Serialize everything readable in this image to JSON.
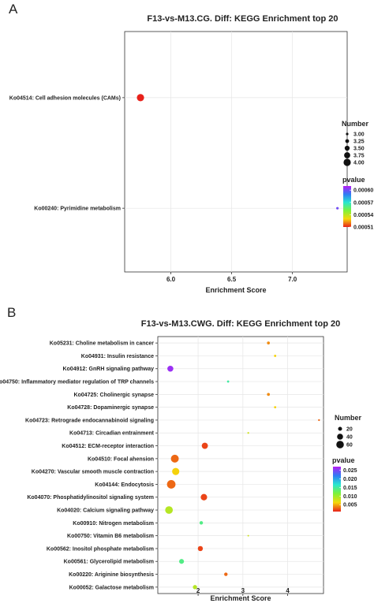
{
  "chart_data": [
    {
      "panel": "A",
      "type": "scatter",
      "title": "F13-vs-M13.CG. Diff: KEGG Enrichment top 20",
      "xlabel": "Enrichment Score",
      "ylabel": "",
      "xlim": [
        5.62,
        7.45
      ],
      "xticks": [
        6.0,
        6.5,
        7.0
      ],
      "xtick_labels": [
        "6.0",
        "6.5",
        "7.0"
      ],
      "grid": true,
      "categories": [
        "Ko04514: Cell adhesion molecules (CAMs)",
        "Ko00240: Pyrimidine metabolism"
      ],
      "points": [
        {
          "term": "Ko04514: Cell adhesion molecules (CAMs)",
          "x": 5.75,
          "number": 4,
          "pvalue": 0.00051
        },
        {
          "term": "Ko00240: Pyrimidine metabolism",
          "x": 7.37,
          "number": 3,
          "pvalue": 0.0006
        }
      ],
      "size_legend": {
        "title": "Number",
        "labels": [
          "3.00",
          "3.25",
          "3.50",
          "3.75",
          "4.00"
        ],
        "values": [
          3.0,
          3.25,
          3.5,
          3.75,
          4.0
        ],
        "range": [
          3,
          4
        ]
      },
      "color_legend": {
        "title": "pvalue",
        "labels": [
          "0.00060",
          "0.00057",
          "0.00054",
          "0.00051"
        ],
        "values": [
          0.0006,
          0.00057,
          0.00054,
          0.00051
        ],
        "range": [
          0.00051,
          0.00061
        ]
      },
      "legend_position": "right"
    },
    {
      "panel": "B",
      "type": "scatter",
      "title": "F13-vs-M13.CWG. Diff: KEGG Enrichment top 20",
      "xlabel": "Enrichment Score",
      "ylabel": "",
      "xlim": [
        1.1,
        4.8
      ],
      "xticks": [
        2,
        3,
        4
      ],
      "xtick_labels": [
        "2",
        "3",
        "4"
      ],
      "grid": true,
      "categories": [
        "Ko05231: Choline metabolism in cancer",
        "Ko04931: Insulin resistance",
        "Ko04912: GnRH signaling pathway",
        "Ko04750: Inflammatory mediator regulation of TRP channels",
        "Ko04725: Cholinergic synapse",
        "Ko04728: Dopaminergic synapse",
        "Ko04723: Retrograde endocannabinoid signaling",
        "Ko04713: Circadian entrainment",
        "Ko04512: ECM-receptor interaction",
        "Ko04510: Focal ahension",
        "Ko04270: Vascular smooth muscle contraction",
        "Ko04144: Endocytosis",
        "Ko04070: Phosphatidylinositol signaling system",
        "Ko04020: Calcium signaling pathway",
        "Ko00910: Nitrogen metabolism",
        "Ko00750: Vitamin B6 metabolism",
        "Ko00562: Inositol phosphate metabolism",
        "Ko00561: Glycerolipid metabolism",
        "Ko00220: Ariginine biosynthesis",
        "Ko00052: Galactose metabolism"
      ],
      "points": [
        {
          "term": "Ko05231: Choline metabolism in cancer",
          "x": 3.57,
          "number": 12,
          "pvalue": 0.004
        },
        {
          "term": "Ko04931: Insulin resistance",
          "x": 3.72,
          "number": 8,
          "pvalue": 0.006
        },
        {
          "term": "Ko04912: GnRH signaling pathway",
          "x": 1.38,
          "number": 40,
          "pvalue": 0.026
        },
        {
          "term": "Ko04750: Inflammatory mediator regulation of TRP channels",
          "x": 2.67,
          "number": 8,
          "pvalue": 0.015
        },
        {
          "term": "Ko04725: Cholinergic synapse",
          "x": 3.57,
          "number": 12,
          "pvalue": 0.004
        },
        {
          "term": "Ko04728: Dopaminergic synapse",
          "x": 3.72,
          "number": 8,
          "pvalue": 0.006
        },
        {
          "term": "Ko04723: Retrograde endocannabinoid signaling",
          "x": 4.7,
          "number": 6,
          "pvalue": 0.003
        },
        {
          "term": "Ko04713: Circadian entrainment",
          "x": 3.12,
          "number": 6,
          "pvalue": 0.008
        },
        {
          "term": "Ko04512: ECM-receptor interaction",
          "x": 2.15,
          "number": 42,
          "pvalue": 0.002
        },
        {
          "term": "Ko04510: Focal ahension",
          "x": 1.48,
          "number": 65,
          "pvalue": 0.003
        },
        {
          "term": "Ko04270: Vascular smooth muscle contraction",
          "x": 1.5,
          "number": 55,
          "pvalue": 0.006
        },
        {
          "term": "Ko04144: Endocytosis",
          "x": 1.4,
          "number": 75,
          "pvalue": 0.003
        },
        {
          "term": "Ko04070: Phosphatidylinositol signaling system",
          "x": 2.13,
          "number": 45,
          "pvalue": 0.002
        },
        {
          "term": "Ko04020: Calcium signaling pathway",
          "x": 1.35,
          "number": 62,
          "pvalue": 0.009
        },
        {
          "term": "Ko00910: Nitrogen metabolism",
          "x": 2.07,
          "number": 16,
          "pvalue": 0.014
        },
        {
          "term": "Ko00750: Vitamin B6 metabolism",
          "x": 3.12,
          "number": 5,
          "pvalue": 0.008
        },
        {
          "term": "Ko00562: Inositol phosphate metabolism",
          "x": 2.05,
          "number": 30,
          "pvalue": 0.002
        },
        {
          "term": "Ko00561: Glycerolipid metabolism",
          "x": 1.63,
          "number": 28,
          "pvalue": 0.014
        },
        {
          "term": "Ko00220: Ariginine biosynthesis",
          "x": 2.62,
          "number": 16,
          "pvalue": 0.003
        },
        {
          "term": "Ko00052: Galactose metabolism",
          "x": 1.93,
          "number": 22,
          "pvalue": 0.009
        }
      ],
      "size_legend": {
        "title": "Number",
        "labels": [
          "20",
          "40",
          "60"
        ],
        "values": [
          20,
          40,
          60
        ],
        "range": [
          5,
          75
        ]
      },
      "color_legend": {
        "title": "pvalue",
        "labels": [
          "0.025",
          "0.020",
          "0.015",
          "0.010",
          "0.005"
        ],
        "values": [
          0.025,
          0.02,
          0.015,
          0.01,
          0.005
        ],
        "range": [
          0.001,
          0.027
        ]
      },
      "legend_position": "right"
    }
  ]
}
